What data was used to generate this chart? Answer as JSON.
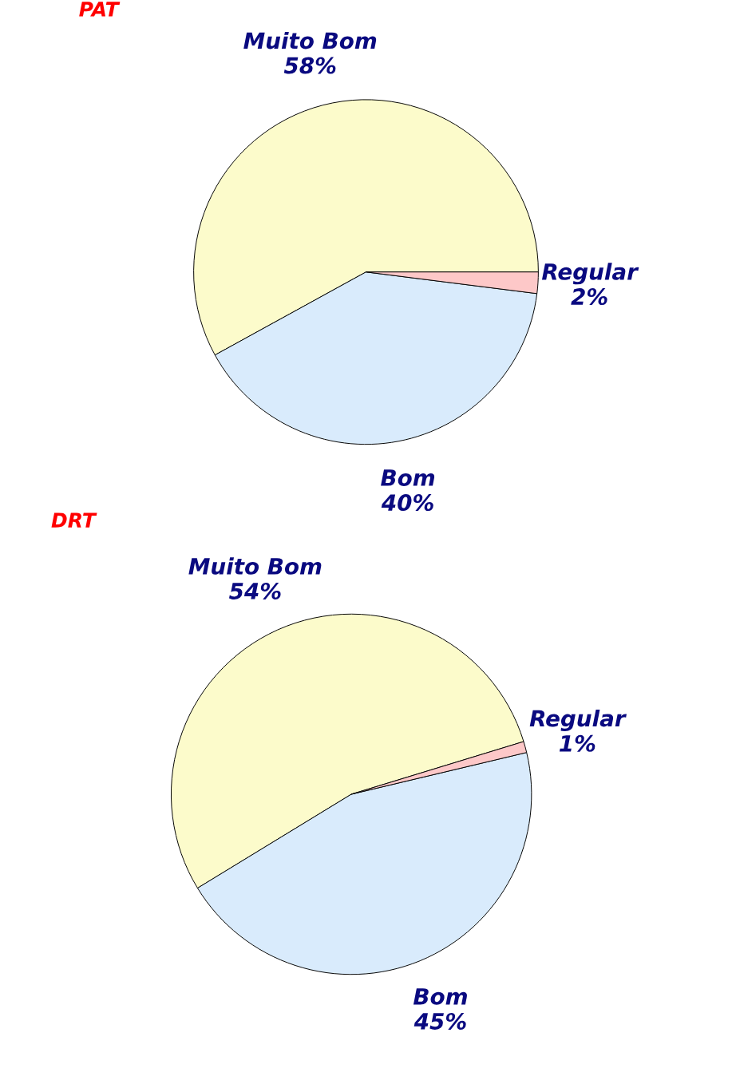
{
  "chart_data": [
    {
      "type": "pie",
      "title": "PAT",
      "categories": [
        "Muito Bom",
        "Bom",
        "Regular"
      ],
      "values": [
        58,
        40,
        2
      ],
      "colors": [
        "#fcfbcb",
        "#d9ebfc",
        "#fdc8c8"
      ],
      "value_labels": [
        "58%",
        "40%",
        "2%"
      ]
    },
    {
      "type": "pie",
      "title": "DRT",
      "categories": [
        "Muito Bom",
        "Bom",
        "Regular"
      ],
      "values": [
        54,
        45,
        1
      ],
      "colors": [
        "#fcfbcb",
        "#d9ebfc",
        "#fdc8c8"
      ],
      "value_labels": [
        "54%",
        "45%",
        "1%"
      ]
    }
  ]
}
